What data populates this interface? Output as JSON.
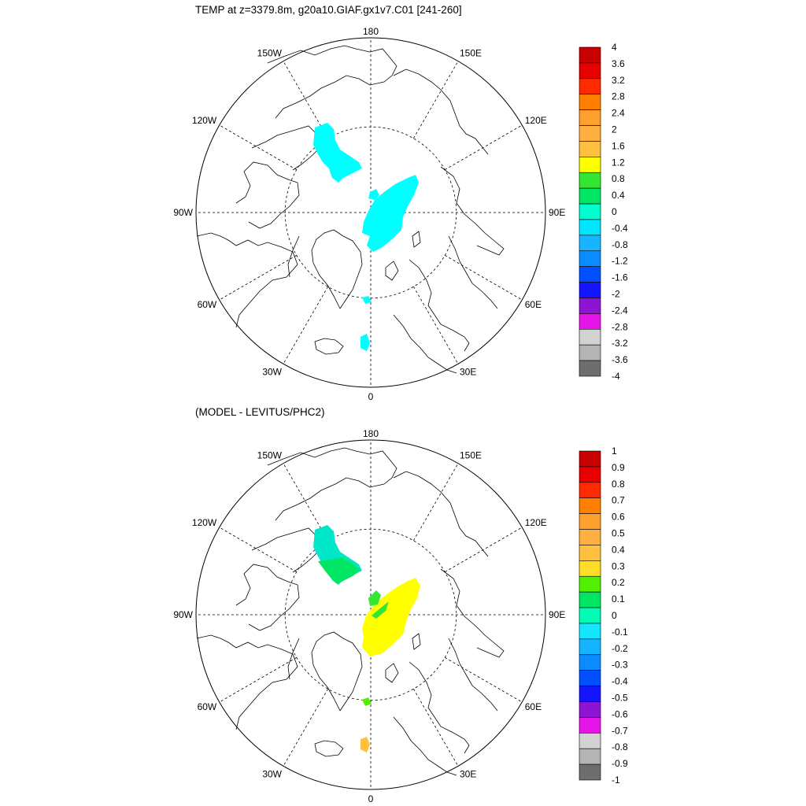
{
  "top_panel": {
    "title": "TEMP at z=3379.8m, g20a10.GIAF.gx1v7.C01 [241-260]",
    "lon_labels": [
      "180",
      "150E",
      "120E",
      "90E",
      "60E",
      "30E",
      "0",
      "30W",
      "60W",
      "90W",
      "120W",
      "150W"
    ],
    "colorbar": {
      "labels": [
        "4",
        "3.6",
        "3.2",
        "2.8",
        "2.4",
        "2",
        "1.6",
        "1.2",
        "0.8",
        "0.4",
        "0",
        "-0.4",
        "-0.8",
        "-1.2",
        "-1.6",
        "-2",
        "-2.4",
        "-2.8",
        "-3.2",
        "-3.6",
        "-4"
      ],
      "colors": [
        "#c80000",
        "#e80000",
        "#ff2a00",
        "#ff8000",
        "#ff9f30",
        "#ffb040",
        "#ffc040",
        "#ffff00",
        "#32e632",
        "#00e664",
        "#00ffd0",
        "#00e6ff",
        "#19b4ff",
        "#0a8cff",
        "#0050ff",
        "#1414ff",
        "#8c14d2",
        "#e614e6",
        "#d2d2d2",
        "#b4b4b4",
        "#6e6e6e"
      ]
    }
  },
  "bottom_panel": {
    "title": "(MODEL - LEVITUS/PHC2)",
    "lon_labels": [
      "180",
      "150E",
      "120E",
      "90E",
      "60E",
      "30E",
      "0",
      "30W",
      "60W",
      "90W",
      "120W",
      "150W"
    ],
    "colorbar": {
      "labels": [
        "1",
        "0.9",
        "0.8",
        "0.7",
        "0.6",
        "0.5",
        "0.4",
        "0.3",
        "0.2",
        "0.1",
        "0",
        "-0.1",
        "-0.2",
        "-0.3",
        "-0.4",
        "-0.5",
        "-0.6",
        "-0.7",
        "-0.8",
        "-0.9",
        "-1"
      ],
      "colors": [
        "#c80000",
        "#e80000",
        "#ff2a00",
        "#ff8000",
        "#ff9f30",
        "#ffb040",
        "#ffc040",
        "#ffdc28",
        "#50f000",
        "#00e664",
        "#00ffb4",
        "#14e6ff",
        "#14b4ff",
        "#0a8cff",
        "#0050ff",
        "#1414ff",
        "#8c14d2",
        "#e614e6",
        "#d2d2d2",
        "#b4b4b4",
        "#6e6e6e"
      ]
    }
  },
  "map_fills": {
    "top": {
      "beaufort_color": "#00ffff",
      "eurasian_color": "#00ffff",
      "norwegian_color": "#00ffff"
    },
    "bottom": {
      "beaufort_color": "#00e6c8",
      "beaufort_lower_color": "#00e664",
      "eurasian_color": "#ffff00",
      "lomonosov_color": "#32e632",
      "fram_color": "#50f000",
      "norwegian_color": "#ffc040"
    }
  }
}
